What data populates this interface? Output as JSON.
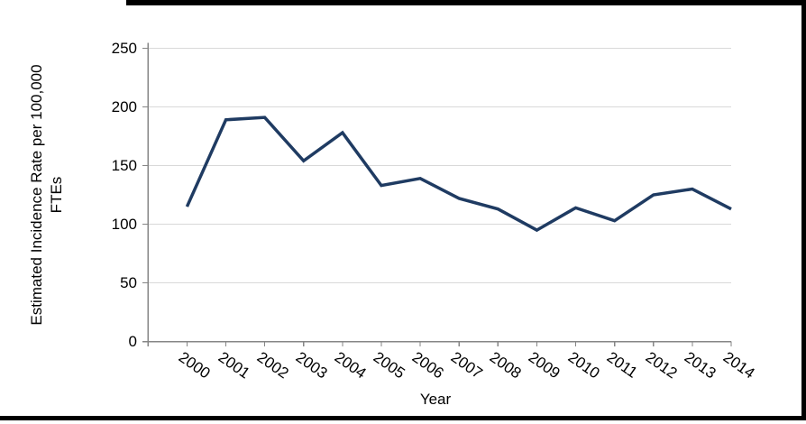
{
  "chart_data": {
    "type": "line",
    "categories": [
      "2000",
      "2001",
      "2002",
      "2003",
      "2004",
      "2005",
      "2006",
      "2007",
      "2008",
      "2009",
      "2010",
      "2011",
      "2012",
      "2013",
      "2014"
    ],
    "series": [
      {
        "values": [
          115,
          189,
          191,
          154,
          178,
          133,
          139,
          122,
          113,
          95,
          114,
          103,
          125,
          130,
          113
        ]
      }
    ],
    "xlabel": "Year",
    "ylabel": "Estimated Incidence Rate per 100,000 FTEs",
    "ylabel_lines": [
      "Estimated Incidence Rate per 100,000",
      "FTEs"
    ],
    "ylim": [
      0,
      250
    ],
    "yticks": [
      0,
      50,
      100,
      150,
      200,
      250
    ],
    "grid": true,
    "legend": false,
    "colors": {
      "line": "#1f3b62",
      "gridline": "#d9d9d9",
      "axis": "#868686",
      "text": "#000000",
      "frame": "#000000"
    }
  }
}
